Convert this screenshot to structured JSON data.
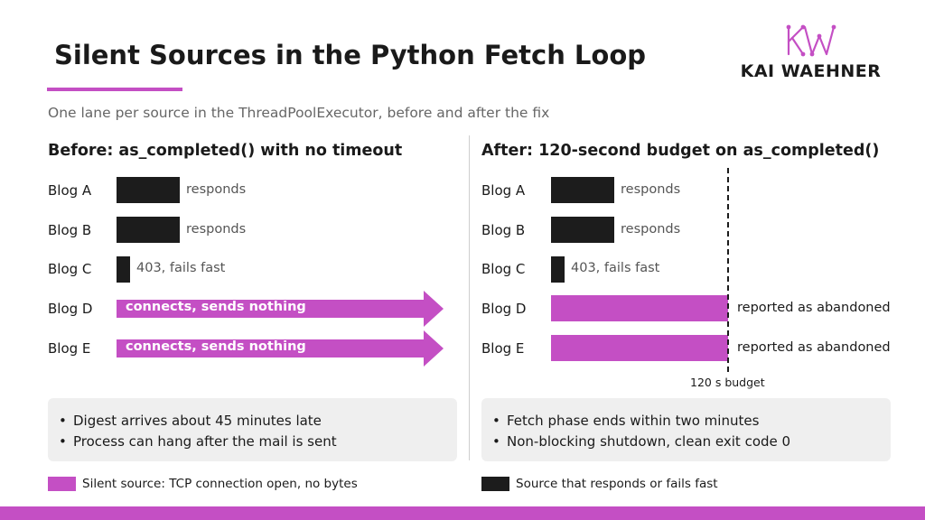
{
  "title": "Silent Sources in the Python Fetch Loop",
  "subtitle": "One lane per source in the ThreadPoolExecutor, before and after the fix",
  "logo": {
    "text": "KAI WAEHNER",
    "color": "#c44fc4"
  },
  "colors": {
    "accent": "#c44fc4",
    "dark": "#1c1c1c",
    "callout_bg": "#efefef"
  },
  "before": {
    "title": "Before: as_completed() with no timeout",
    "lanes": [
      {
        "label": "Blog A",
        "note": "responds",
        "kind": "responds"
      },
      {
        "label": "Blog B",
        "note": "responds",
        "kind": "responds"
      },
      {
        "label": "Blog C",
        "note": "403, fails fast",
        "kind": "fails-fast"
      },
      {
        "label": "Blog D",
        "note": "connects, sends nothing",
        "kind": "silent"
      },
      {
        "label": "Blog E",
        "note": "connects, sends nothing",
        "kind": "silent"
      }
    ],
    "bullets": [
      "Digest arrives about 45 minutes late",
      "Process can hang after the mail is sent"
    ]
  },
  "after": {
    "title": "After: 120-second budget on as_completed()",
    "lanes": [
      {
        "label": "Blog A",
        "note": "responds",
        "kind": "responds"
      },
      {
        "label": "Blog B",
        "note": "responds",
        "kind": "responds"
      },
      {
        "label": "Blog C",
        "note": "403, fails fast",
        "kind": "fails-fast"
      },
      {
        "label": "Blog D",
        "note": "reported as abandoned",
        "kind": "abandoned"
      },
      {
        "label": "Blog E",
        "note": "reported as abandoned",
        "kind": "abandoned"
      }
    ],
    "budget_label": "120 s budget",
    "bullets": [
      "Fetch phase ends within two minutes",
      "Non-blocking shutdown, clean exit code 0"
    ]
  },
  "bullet_glyph": "•",
  "legend": [
    {
      "label": "Silent source: TCP connection open, no bytes",
      "color": "#c44fc4"
    },
    {
      "label": "Source that responds or fails fast",
      "color": "#1c1c1c"
    }
  ]
}
